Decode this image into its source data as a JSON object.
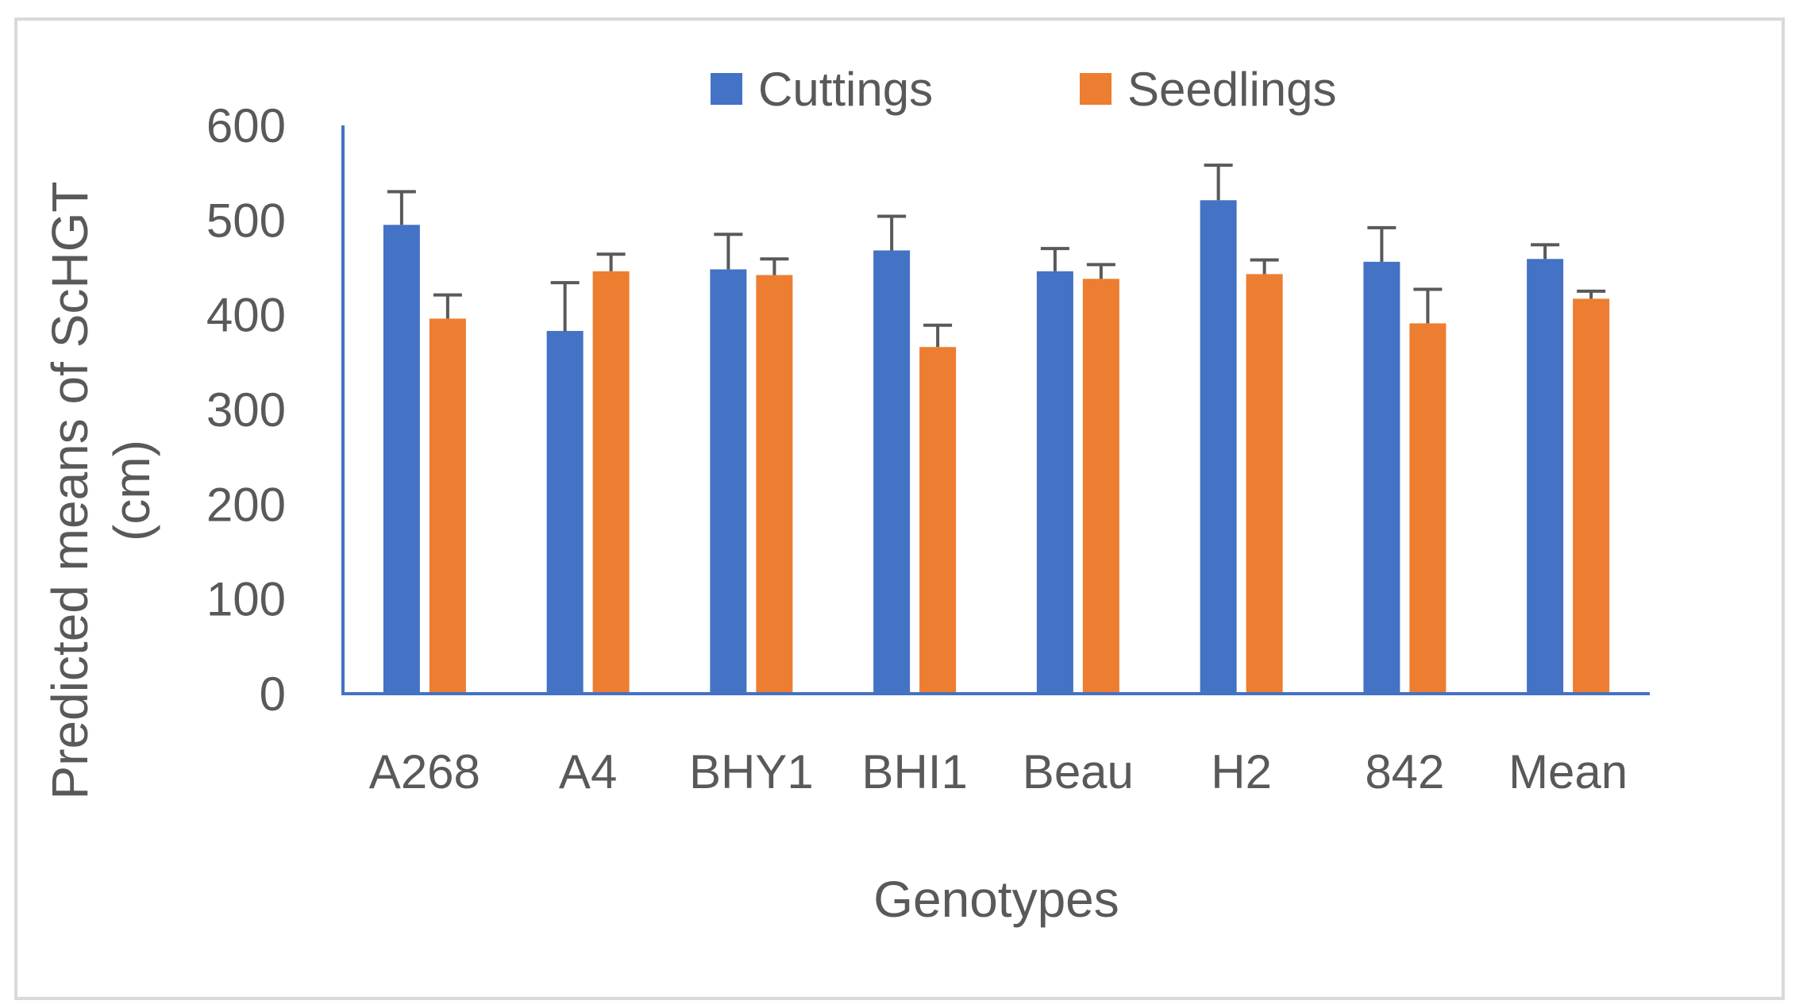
{
  "chart_data": {
    "type": "bar",
    "title": "",
    "xlabel": "Genotypes",
    "ylabel": "Predicted means of ScHGT (cm)",
    "ylabel_lines": [
      "Predicted means of ScHGT",
      "(cm)"
    ],
    "ylim": [
      0,
      600
    ],
    "yticks": [
      "0",
      "100",
      "200",
      "300",
      "400",
      "500",
      "600"
    ],
    "ytick_values": [
      0,
      100,
      200,
      300,
      400,
      500,
      600
    ],
    "categories": [
      "A268",
      "A4",
      "BHY1",
      "BHI1",
      "Beau",
      "H2",
      "842",
      "Mean"
    ],
    "series": [
      {
        "name": "Cuttings",
        "color": "#4472C4",
        "values": [
          495,
          383,
          448,
          468,
          446,
          521,
          456,
          459
        ],
        "errors": [
          35,
          51,
          37,
          36,
          24,
          37,
          36,
          15
        ]
      },
      {
        "name": "Seedlings",
        "color": "#ED7D31",
        "values": [
          396,
          446,
          442,
          366,
          438,
          443,
          391,
          417
        ],
        "errors": [
          25,
          18,
          17,
          23,
          15,
          15,
          36,
          8
        ]
      }
    ],
    "legend_position": "top",
    "axis_color": "#4472C4",
    "error_bar_color": "#595959",
    "grid": false
  }
}
